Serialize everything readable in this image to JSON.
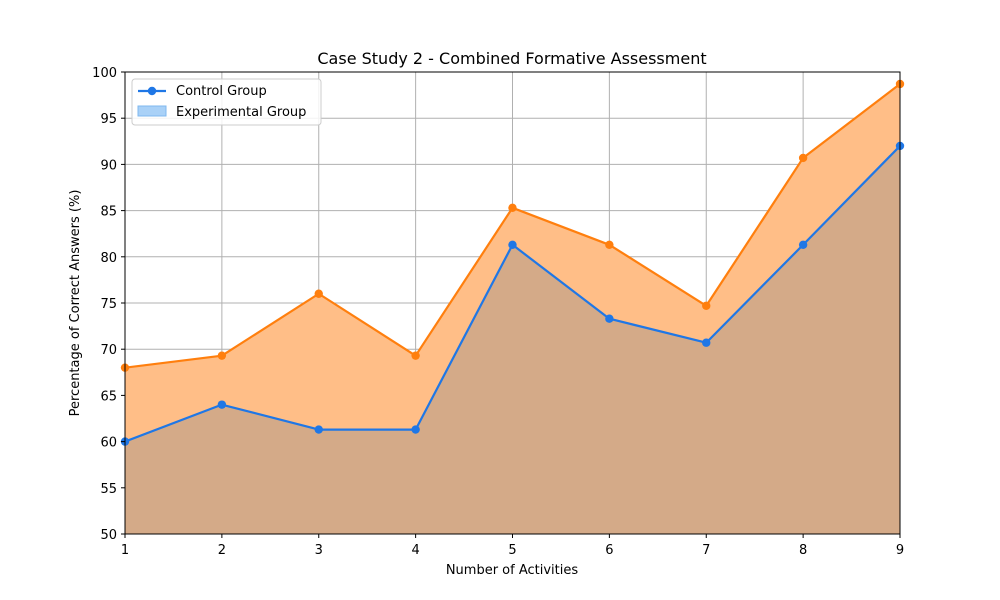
{
  "chart_data": {
    "type": "line",
    "title": "Case Study 2 - Combined Formative Assessment",
    "xlabel": "Number of Activities",
    "ylabel": "Percentage of Correct Answers (%)",
    "x": [
      1,
      2,
      3,
      4,
      5,
      6,
      7,
      8,
      9
    ],
    "xlim": [
      1,
      9
    ],
    "ylim": [
      50,
      100
    ],
    "xticks": [
      1,
      2,
      3,
      4,
      5,
      6,
      7,
      8,
      9
    ],
    "yticks": [
      50,
      55,
      60,
      65,
      70,
      75,
      80,
      85,
      90,
      95,
      100
    ],
    "grid": true,
    "legend_position": "top-left",
    "series": [
      {
        "name": "Control Group",
        "values": [
          60.0,
          64.0,
          61.3,
          61.3,
          81.3,
          73.3,
          70.7,
          81.3,
          92.0
        ],
        "line_color": "#1f77e6",
        "fill_color": "#d4aa88",
        "legend_style": "line-marker"
      },
      {
        "name": "Experimental Group",
        "values": [
          68.0,
          69.3,
          76.0,
          69.3,
          85.3,
          81.3,
          74.7,
          90.7,
          98.7
        ],
        "line_color": "#ff7f0e",
        "fill_color": "#ffbe87",
        "legend_style": "patch",
        "legend_patch_color": "#a9d1f7"
      }
    ]
  }
}
